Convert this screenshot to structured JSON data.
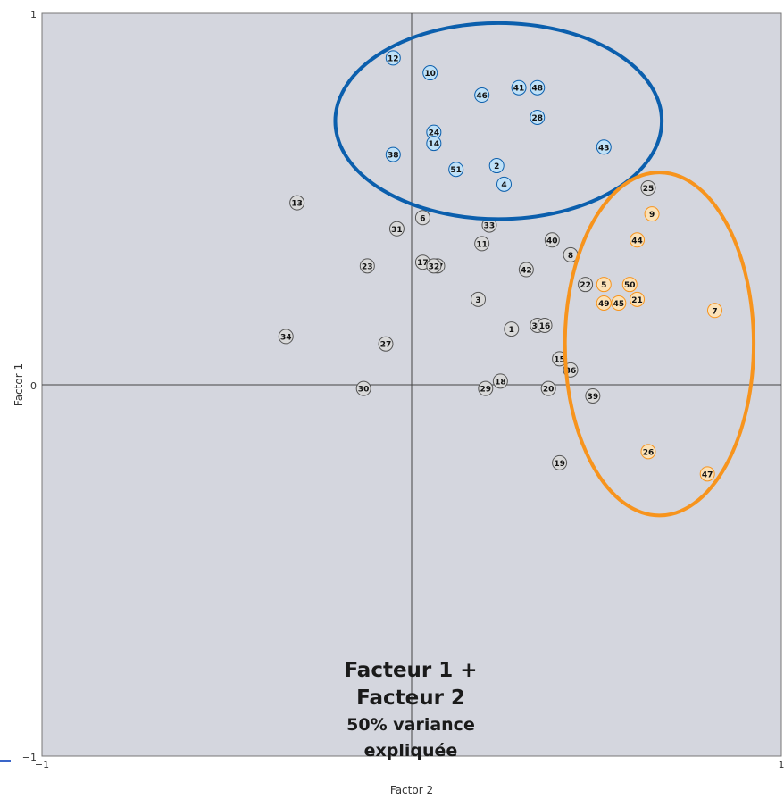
{
  "chart_data": {
    "type": "scatter",
    "xlabel": "Factor 2",
    "ylabel": "Factor 1",
    "xlim": [
      -1,
      1
    ],
    "ylim": [
      -1,
      1
    ],
    "x_ticks": [
      "−1",
      "1"
    ],
    "y_ticks": [
      "1",
      "0",
      "−1"
    ],
    "grid": false,
    "groups": [
      {
        "name": "blue",
        "color": "#0b5fad",
        "fill": "#bfe1f7"
      },
      {
        "name": "orange",
        "color": "#f7941d",
        "fill": "#fbe2b8"
      },
      {
        "name": "gray",
        "color": "#555555",
        "fill": "#d9d9d9"
      }
    ],
    "points": [
      {
        "label": "12",
        "x": -0.05,
        "y": 0.88,
        "group": "blue"
      },
      {
        "label": "10",
        "x": 0.05,
        "y": 0.84,
        "group": "blue"
      },
      {
        "label": "46",
        "x": 0.19,
        "y": 0.78,
        "group": "blue"
      },
      {
        "label": "41",
        "x": 0.29,
        "y": 0.8,
        "group": "blue"
      },
      {
        "label": "48",
        "x": 0.34,
        "y": 0.8,
        "group": "blue"
      },
      {
        "label": "28",
        "x": 0.34,
        "y": 0.72,
        "group": "blue"
      },
      {
        "label": "24",
        "x": 0.06,
        "y": 0.68,
        "group": "blue"
      },
      {
        "label": "14",
        "x": 0.06,
        "y": 0.65,
        "group": "blue"
      },
      {
        "label": "43",
        "x": 0.52,
        "y": 0.64,
        "group": "blue"
      },
      {
        "label": "38",
        "x": -0.05,
        "y": 0.62,
        "group": "blue"
      },
      {
        "label": "51",
        "x": 0.12,
        "y": 0.58,
        "group": "blue"
      },
      {
        "label": "2",
        "x": 0.23,
        "y": 0.59,
        "group": "blue"
      },
      {
        "label": "4",
        "x": 0.25,
        "y": 0.54,
        "group": "blue"
      },
      {
        "label": "25",
        "x": 0.64,
        "y": 0.53,
        "group": "gray"
      },
      {
        "label": "9",
        "x": 0.65,
        "y": 0.46,
        "group": "orange"
      },
      {
        "label": "44",
        "x": 0.61,
        "y": 0.39,
        "group": "orange"
      },
      {
        "label": "50",
        "x": 0.59,
        "y": 0.27,
        "group": "orange"
      },
      {
        "label": "5",
        "x": 0.52,
        "y": 0.27,
        "group": "orange"
      },
      {
        "label": "49",
        "x": 0.52,
        "y": 0.22,
        "group": "orange"
      },
      {
        "label": "45",
        "x": 0.56,
        "y": 0.22,
        "group": "orange"
      },
      {
        "label": "21",
        "x": 0.61,
        "y": 0.23,
        "group": "orange"
      },
      {
        "label": "7",
        "x": 0.82,
        "y": 0.2,
        "group": "orange"
      },
      {
        "label": "26",
        "x": 0.64,
        "y": -0.18,
        "group": "orange"
      },
      {
        "label": "47",
        "x": 0.8,
        "y": -0.24,
        "group": "orange"
      },
      {
        "label": "13",
        "x": -0.31,
        "y": 0.49,
        "group": "gray"
      },
      {
        "label": "6",
        "x": 0.03,
        "y": 0.45,
        "group": "gray"
      },
      {
        "label": "31",
        "x": -0.04,
        "y": 0.42,
        "group": "gray"
      },
      {
        "label": "33",
        "x": 0.21,
        "y": 0.43,
        "group": "gray"
      },
      {
        "label": "11",
        "x": 0.19,
        "y": 0.38,
        "group": "gray"
      },
      {
        "label": "40",
        "x": 0.38,
        "y": 0.39,
        "group": "gray"
      },
      {
        "label": "8",
        "x": 0.43,
        "y": 0.35,
        "group": "gray"
      },
      {
        "label": "23",
        "x": -0.12,
        "y": 0.32,
        "group": "gray"
      },
      {
        "label": "17",
        "x": 0.03,
        "y": 0.33,
        "group": "gray"
      },
      {
        "label": "37",
        "x": 0.07,
        "y": 0.32,
        "group": "gray"
      },
      {
        "label": "32",
        "x": 0.06,
        "y": 0.32,
        "group": "gray"
      },
      {
        "label": "42",
        "x": 0.31,
        "y": 0.31,
        "group": "gray"
      },
      {
        "label": "22",
        "x": 0.47,
        "y": 0.27,
        "group": "gray"
      },
      {
        "label": "3",
        "x": 0.18,
        "y": 0.23,
        "group": "gray"
      },
      {
        "label": "35",
        "x": 0.34,
        "y": 0.16,
        "group": "gray"
      },
      {
        "label": "16",
        "x": 0.36,
        "y": 0.16,
        "group": "gray"
      },
      {
        "label": "1",
        "x": 0.27,
        "y": 0.15,
        "group": "gray"
      },
      {
        "label": "34",
        "x": -0.34,
        "y": 0.13,
        "group": "gray"
      },
      {
        "label": "27",
        "x": -0.07,
        "y": 0.11,
        "group": "gray"
      },
      {
        "label": "15",
        "x": 0.4,
        "y": 0.07,
        "group": "gray"
      },
      {
        "label": "36",
        "x": 0.43,
        "y": 0.04,
        "group": "gray"
      },
      {
        "label": "18",
        "x": 0.24,
        "y": 0.01,
        "group": "gray"
      },
      {
        "label": "29",
        "x": 0.2,
        "y": -0.01,
        "group": "gray"
      },
      {
        "label": "20",
        "x": 0.37,
        "y": -0.01,
        "group": "gray"
      },
      {
        "label": "39",
        "x": 0.49,
        "y": -0.03,
        "group": "gray"
      },
      {
        "label": "30",
        "x": -0.13,
        "y": -0.01,
        "group": "gray"
      },
      {
        "label": "19",
        "x": 0.4,
        "y": -0.21,
        "group": "gray"
      }
    ],
    "overlay_text": [
      "Facteur 1 +",
      "Facteur 2",
      "50% variance",
      "expliquée"
    ]
  }
}
